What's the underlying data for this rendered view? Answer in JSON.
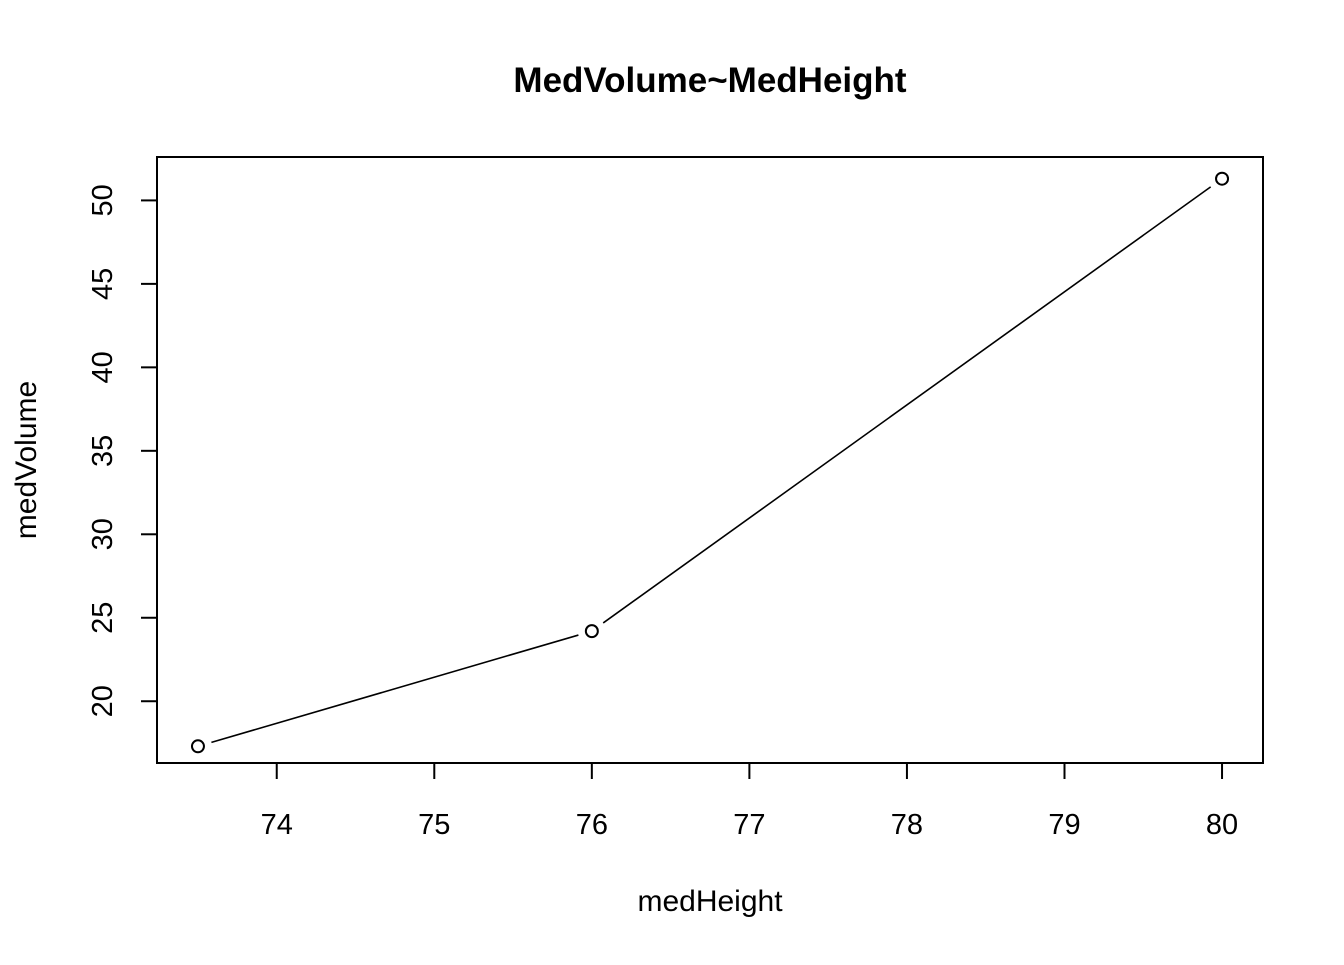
{
  "chart_data": {
    "type": "line",
    "title": "MedVolume~MedHeight",
    "xlabel": "medHeight",
    "ylabel": "medVolume",
    "x": [
      73.5,
      76,
      80
    ],
    "y": [
      17.3,
      24.2,
      51.3
    ],
    "xlim": [
      73.24,
      80.26
    ],
    "ylim": [
      16.3,
      52.6
    ],
    "xticks": [
      74,
      75,
      76,
      77,
      78,
      79,
      80
    ],
    "yticks": [
      20,
      25,
      30,
      35,
      40,
      45,
      50
    ],
    "marker": "open-circle",
    "line_color": "#000000",
    "grid": false,
    "legend": false
  }
}
